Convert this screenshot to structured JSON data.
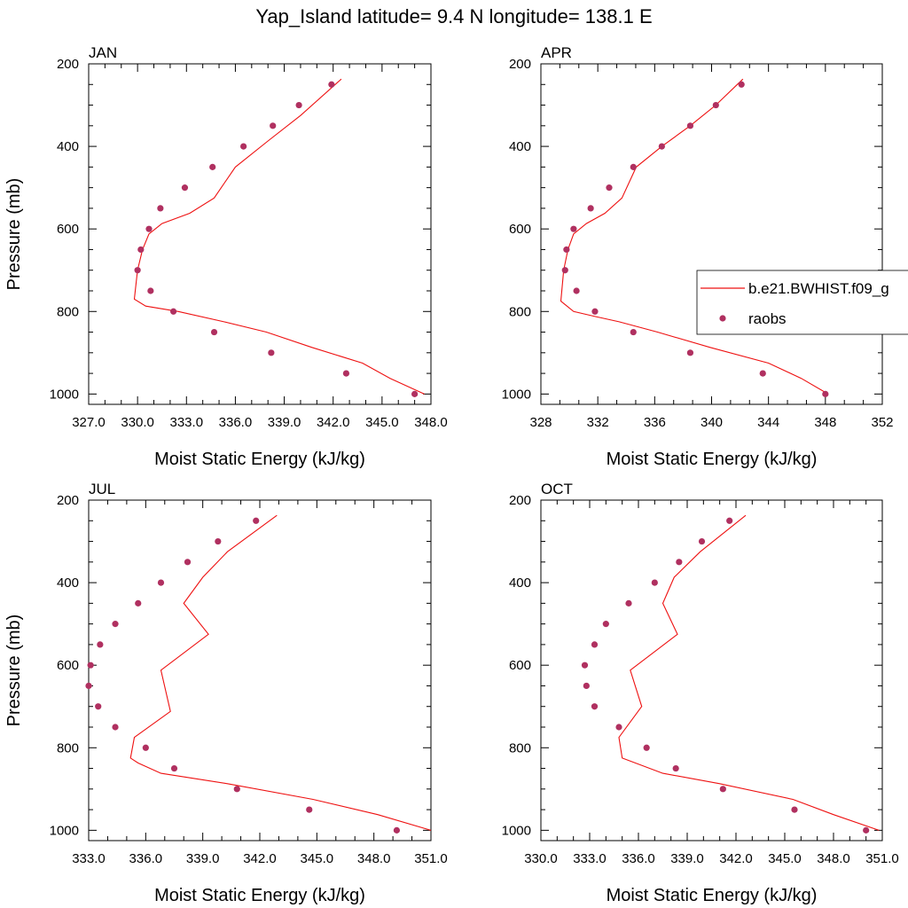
{
  "title": "Yap_Island  latitude= 9.4 N longitude= 138.1 E",
  "colors": {
    "model": "#ee1111",
    "raobs": "#b03060"
  },
  "legend": {
    "model_label": "b.e21.BWHIST.f09_g",
    "raobs_label": "raobs"
  },
  "chart_data": [
    {
      "type": "line",
      "panel": "JAN",
      "xlabel": "Moist Static Energy (kJ/kg)",
      "ylabel": "Pressure (mb)",
      "xlim": [
        327,
        348
      ],
      "ylim": [
        1025,
        200
      ],
      "xticks": [
        "327.0",
        "330.0",
        "333.0",
        "336.0",
        "339.0",
        "342.0",
        "345.0",
        "348.0"
      ],
      "yticks": [
        "200",
        "400",
        "600",
        "800",
        "1000"
      ],
      "series": [
        {
          "kind": "line",
          "x": [
            347.6,
            345.5,
            343.8,
            340.7,
            337.9,
            335.3,
            332.5,
            330.5,
            329.8,
            330.0,
            330.3,
            330.7,
            331.5,
            333.2,
            334.7,
            336.0,
            338.0,
            340.0,
            342.5
          ],
          "y": [
            1000,
            962,
            925,
            887,
            850,
            825,
            800,
            787,
            770,
            700,
            650,
            612,
            587,
            562,
            525,
            450,
            387,
            325,
            237
          ]
        },
        {
          "kind": "scatter",
          "x": [
            347.0,
            342.8,
            338.2,
            334.7,
            332.2,
            330.8,
            330.0,
            330.2,
            330.7,
            331.4,
            332.9,
            334.6,
            336.5,
            338.3,
            339.9,
            341.9
          ],
          "y": [
            1000,
            950,
            900,
            850,
            800,
            750,
            700,
            650,
            600,
            550,
            500,
            450,
            400,
            350,
            300,
            250
          ]
        }
      ]
    },
    {
      "type": "line",
      "panel": "APR",
      "xlabel": "Moist Static Energy (kJ/kg)",
      "ylabel": "",
      "xlim": [
        328,
        352
      ],
      "ylim": [
        1025,
        200
      ],
      "xticks": [
        "328",
        "332",
        "336",
        "340",
        "344",
        "348",
        "352"
      ],
      "yticks": [
        "200",
        "400",
        "600",
        "800",
        "1000"
      ],
      "series": [
        {
          "kind": "line",
          "x": [
            348.2,
            346.3,
            344.0,
            339.9,
            336.2,
            333.5,
            331.8,
            330.3,
            329.4,
            329.6,
            329.9,
            330.3,
            331.2,
            332.5,
            333.7,
            334.7,
            336.5,
            338.5,
            340.3,
            342.2
          ],
          "y": [
            1000,
            962,
            925,
            887,
            850,
            825,
            812,
            800,
            775,
            700,
            650,
            612,
            587,
            562,
            525,
            450,
            400,
            350,
            300,
            237
          ]
        },
        {
          "kind": "scatter",
          "x": [
            348.0,
            343.6,
            338.5,
            334.5,
            331.8,
            330.5,
            329.7,
            329.8,
            330.3,
            331.5,
            332.8,
            334.5,
            336.5,
            338.5,
            340.3,
            342.1
          ],
          "y": [
            1000,
            950,
            900,
            850,
            800,
            750,
            700,
            650,
            600,
            550,
            500,
            450,
            400,
            350,
            300,
            250
          ]
        }
      ]
    },
    {
      "type": "line",
      "panel": "JUL",
      "xlabel": "Moist Static Energy (kJ/kg)",
      "ylabel": "Pressure (mb)",
      "xlim": [
        333,
        351
      ],
      "ylim": [
        1025,
        200
      ],
      "xticks": [
        "333.0",
        "336.0",
        "339.0",
        "342.0",
        "345.0",
        "348.0",
        "351.0"
      ],
      "yticks": [
        "200",
        "400",
        "600",
        "800",
        "1000"
      ],
      "series": [
        {
          "kind": "line",
          "x": [
            351.0,
            348.2,
            344.8,
            340.3,
            336.8,
            335.6,
            335.2,
            335.4,
            337.3,
            336.8,
            339.3,
            338.0,
            339.0,
            340.3,
            342.9
          ],
          "y": [
            1000,
            962,
            925,
            887,
            862,
            837,
            825,
            775,
            712,
            612,
            525,
            450,
            387,
            325,
            237
          ]
        },
        {
          "kind": "scatter",
          "x": [
            349.2,
            344.6,
            340.8,
            337.5,
            336.0,
            334.4,
            333.5,
            333.0,
            333.1,
            333.6,
            334.4,
            335.6,
            336.8,
            338.2,
            339.8,
            341.8
          ],
          "y": [
            1000,
            950,
            900,
            850,
            800,
            750,
            700,
            650,
            600,
            550,
            500,
            450,
            400,
            350,
            300,
            250
          ]
        }
      ]
    },
    {
      "type": "line",
      "panel": "OCT",
      "xlabel": "Moist Static Energy (kJ/kg)",
      "ylabel": "",
      "xlim": [
        330,
        351
      ],
      "ylim": [
        1025,
        200
      ],
      "xticks": [
        "330.0",
        "333.0",
        "336.0",
        "339.0",
        "342.0",
        "345.0",
        "348.0",
        "351.0"
      ],
      "yticks": [
        "200",
        "400",
        "600",
        "800",
        "1000"
      ],
      "series": [
        {
          "kind": "line",
          "x": [
            350.8,
            348.0,
            345.5,
            341.0,
            337.5,
            335.0,
            334.8,
            336.2,
            335.5,
            338.4,
            337.5,
            338.2,
            339.8,
            342.6
          ],
          "y": [
            1000,
            962,
            925,
            887,
            862,
            825,
            775,
            700,
            612,
            525,
            450,
            387,
            325,
            237
          ]
        },
        {
          "kind": "scatter",
          "x": [
            350.0,
            345.6,
            341.2,
            338.3,
            336.5,
            334.8,
            333.3,
            332.8,
            332.7,
            333.3,
            334.0,
            335.4,
            337.0,
            338.5,
            339.9,
            341.6
          ],
          "y": [
            1000,
            950,
            900,
            850,
            800,
            750,
            700,
            650,
            600,
            550,
            500,
            450,
            400,
            350,
            300,
            250
          ]
        }
      ]
    }
  ]
}
